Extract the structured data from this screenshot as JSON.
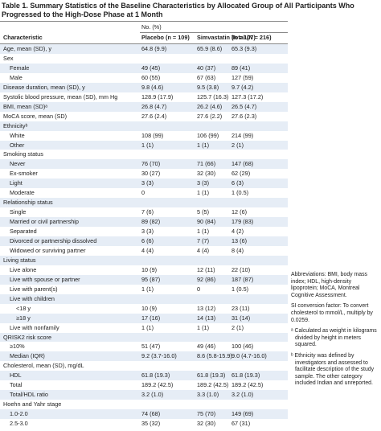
{
  "title": "Table 1. Summary Statistics of the Baseline Characteristics by Allocated Group of All Participants Who Progressed to the High-Dose Phase at 1 Month",
  "table": {
    "header": {
      "group": "No. (%)",
      "columns": [
        "Characteristic",
        "Placebo (n = 109)",
        "Simvastatin (n = 107)",
        "Total (N = 216)"
      ]
    },
    "rows": [
      {
        "label": "Age, mean (SD), y",
        "cells": [
          "64.8 (9.9)",
          "65.9 (8.6)",
          "65.3 (9.3)"
        ]
      },
      {
        "label": "Sex",
        "rows": [
          {
            "label": "Female",
            "cells": [
              "49 (45)",
              "40 (37)",
              "89 (41)"
            ]
          },
          {
            "label": "Male",
            "cells": [
              "60 (55)",
              "67 (63)",
              "127 (59)"
            ]
          }
        ]
      },
      {
        "label": "Disease duration, mean (SD), y",
        "cells": [
          "9.8 (4.6)",
          "9.5 (3.8)",
          "9.7 (4.2)"
        ]
      },
      {
        "label": "Systolic blood pressure, mean (SD), mm Hg",
        "cells": [
          "128.9 (17.9)",
          "125.7 (16.3)",
          "127.3 (17.2)"
        ]
      },
      {
        "label": "BMI, mean (SD)ᵃ",
        "cells": [
          "26.8 (4.7)",
          "26.2 (4.6)",
          "26.5 (4.7)"
        ]
      },
      {
        "label": "MoCA score, mean (SD)",
        "cells": [
          "27.6 (2.4)",
          "27.6 (2.2)",
          "27.6 (2.3)"
        ]
      },
      {
        "label": "Ethnicityᵇ",
        "rows": [
          {
            "label": "White",
            "cells": [
              "108 (99)",
              "106 (99)",
              "214 (99)"
            ]
          },
          {
            "label": "Other",
            "cells": [
              "1 (1)",
              "1 (1)",
              "2 (1)"
            ]
          }
        ]
      },
      {
        "label": "Smoking status",
        "rows": [
          {
            "label": "Never",
            "cells": [
              "76 (70)",
              "71 (66)",
              "147 (68)"
            ]
          },
          {
            "label": "Ex-smoker",
            "cells": [
              "30 (27)",
              "32 (30)",
              "62 (29)"
            ]
          },
          {
            "label": "Light",
            "cells": [
              "3 (3)",
              "3 (3)",
              "6 (3)"
            ]
          },
          {
            "label": "Moderate",
            "cells": [
              "0",
              "1 (1)",
              "1 (0.5)"
            ]
          }
        ]
      },
      {
        "label": "Relationship status",
        "rows": [
          {
            "label": "Single",
            "cells": [
              "7 (6)",
              "5 (5)",
              "12 (6)"
            ]
          },
          {
            "label": "Married or civil partnership",
            "cells": [
              "89 (82)",
              "90 (84)",
              "179 (83)"
            ]
          },
          {
            "label": "Separated",
            "cells": [
              "3 (3)",
              "1 (1)",
              "4 (2)"
            ]
          },
          {
            "label": "Divorced or partnership dissolved",
            "cells": [
              "6 (6)",
              "7 (7)",
              "13 (6)"
            ]
          },
          {
            "label": "Widowed or surviving partner",
            "cells": [
              "4 (4)",
              "4 (4)",
              "8 (4)"
            ]
          }
        ]
      },
      {
        "label": "Living status",
        "rows": [
          {
            "label": "Live alone",
            "cells": [
              "10 (9)",
              "12 (11)",
              "22 (10)"
            ]
          },
          {
            "label": "Live with spouse or partner",
            "cells": [
              "95 (87)",
              "92 (86)",
              "187 (87)"
            ]
          },
          {
            "label": "Live with parent(s)",
            "cells": [
              "1 (1)",
              "0",
              "1 (0.5)"
            ]
          },
          {
            "label": "Live with children",
            "rows": [
              {
                "label": "<18 y",
                "cells": [
                  "10 (9)",
                  "13 (12)",
                  "23 (11)"
                ]
              },
              {
                "label": "≥18 y",
                "cells": [
                  "17 (16)",
                  "14 (13)",
                  "31 (14)"
                ]
              }
            ]
          },
          {
            "label": "Live with nonfamily",
            "cells": [
              "1 (1)",
              "1 (1)",
              "2 (1)"
            ]
          }
        ]
      },
      {
        "label": "QRISK2 risk score",
        "rows": [
          {
            "label": "≥10%",
            "cells": [
              "51 (47)",
              "49 (46)",
              "100 (46)"
            ]
          },
          {
            "label": "Median (IQR)",
            "cells": [
              "9.2 (3.7-16.0)",
              "8.6 (5.8-15.9)",
              "9.0 (4.7-16.0)"
            ]
          }
        ]
      },
      {
        "label": "Cholesterol, mean (SD), mg/dL",
        "rows": [
          {
            "label": "HDL",
            "cells": [
              "61.8 (19.3)",
              "61.8 (19.3)",
              "61.8 (19.3)"
            ]
          },
          {
            "label": "Total",
            "cells": [
              "189.2 (42.5)",
              "189.2 (42.5)",
              "189.2 (42.5)"
            ]
          },
          {
            "label": "Total/HDL ratio",
            "cells": [
              "3.2 (1.0)",
              "3.3 (1.0)",
              "3.2 (1.0)"
            ]
          }
        ]
      },
      {
        "label": "Hoehn and Yahr stage",
        "rows": [
          {
            "label": "1.0-2.0",
            "cells": [
              "74 (68)",
              "75 (70)",
              "149 (69)"
            ]
          },
          {
            "label": "2.5-3.0",
            "cells": [
              "35 (32)",
              "32 (30)",
              "67 (31)"
            ]
          }
        ]
      }
    ]
  },
  "notes": {
    "abbreviations": "Abbreviations: BMI, body mass index; HDL, high-density lipoprotein; MoCA, Montreal Cognitive Assessment.",
    "si_conversion": "SI conversion factor: To convert cholesterol to mmol/L, multiply by 0.0259.",
    "footnotes": [
      "ᵃ Calculated as weight in kilograms divided by height in meters squared.",
      "ᵇ Ethnicity was defined by investigators and assessed to facilitate description of the study sample. The other category included Indian and unreported."
    ]
  }
}
